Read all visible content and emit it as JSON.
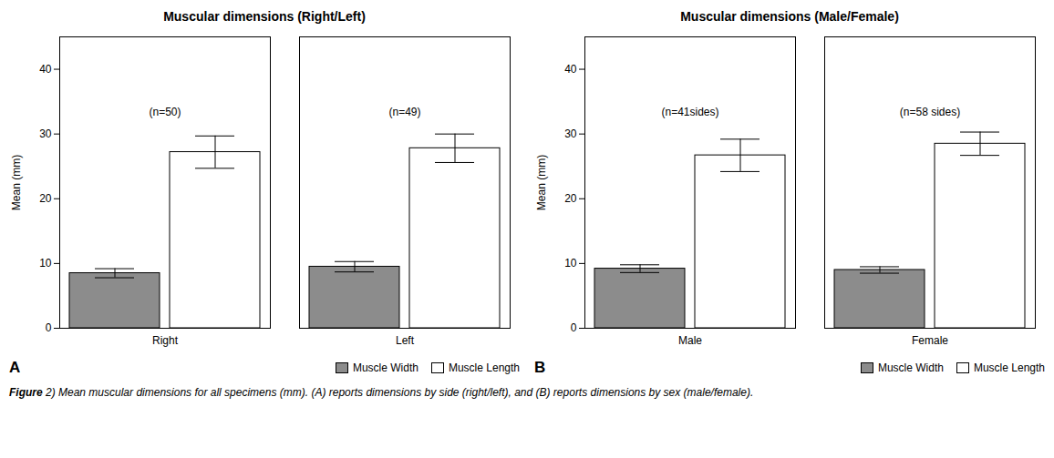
{
  "chart_data": [
    {
      "type": "bar",
      "title": "Muscular dimensions (Right/Left)",
      "label": "A",
      "categories": [
        "Right",
        "Left"
      ],
      "series": [
        {
          "name": "Muscle Width",
          "color": "#8c8c8c",
          "values": [
            8.5,
            9.5
          ],
          "errors": [
            0.7,
            0.8
          ]
        },
        {
          "name": "Muscle Length",
          "color": "#ffffff",
          "values": [
            27.2,
            27.8
          ],
          "errors": [
            2.5,
            2.2
          ]
        }
      ],
      "annotations": [
        "(n=50)",
        "(n=49)"
      ],
      "ylabel": "Mean (mm)",
      "ylim": [
        0,
        45
      ],
      "yticks": [
        0,
        10,
        20,
        30,
        40
      ],
      "grid": false,
      "legend": "lower right"
    },
    {
      "type": "bar",
      "title": "Muscular dimensions (Male/Female)",
      "label": "B",
      "categories": [
        "Male",
        "Female"
      ],
      "series": [
        {
          "name": "Muscle Width",
          "color": "#8c8c8c",
          "values": [
            9.2,
            9.0
          ],
          "errors": [
            0.6,
            0.5
          ]
        },
        {
          "name": "Muscle Length",
          "color": "#ffffff",
          "values": [
            26.7,
            28.5
          ],
          "errors": [
            2.5,
            1.8
          ]
        }
      ],
      "annotations": [
        "(n=41sides)",
        "(n=58 sides)"
      ],
      "ylabel": "Mean (mm)",
      "ylim": [
        0,
        45
      ],
      "yticks": [
        0,
        10,
        20,
        30,
        40
      ],
      "grid": false,
      "legend": "lower right"
    }
  ],
  "caption_bold": "Figure",
  "caption_rest": " 2) Mean muscular dimensions for all specimens (mm). (A) reports dimensions by side (right/left), and (B) reports dimensions by sex (male/female)."
}
